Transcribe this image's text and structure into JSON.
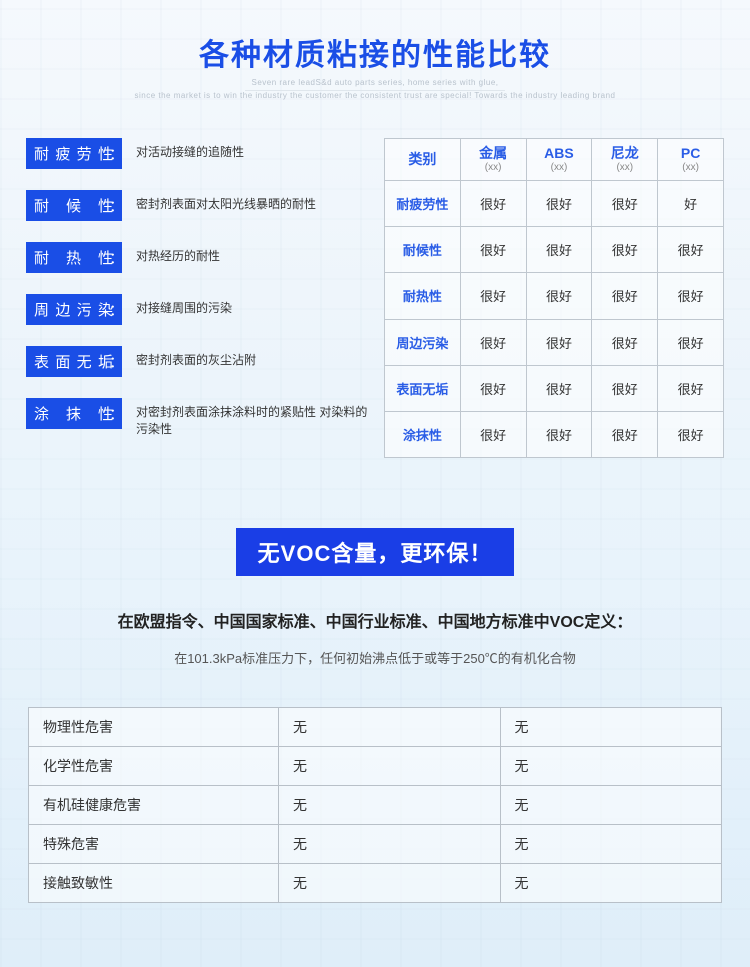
{
  "colors": {
    "title": "#1a4ee6",
    "label_bg": "#1a4ee6",
    "banner_bg": "#1a3ee6",
    "table_border": "#bfc7cf",
    "header_text": "#2a5de6",
    "body_text": "#333333",
    "sub_text": "#888888"
  },
  "title": "各种材质粘接的性能比较",
  "subtitle_lines": [
    "Seven rare leadS&d auto parts series, home series with glue,",
    "since the market is to win the industry the customer the consistent trust are special! Towards the industry leading brand"
  ],
  "definitions": [
    {
      "label": "耐疲劳性",
      "text": "对活动接缝的追随性"
    },
    {
      "label": "耐候性",
      "text": "密封剂表面对太阳光线暴晒的耐性"
    },
    {
      "label": "耐热性",
      "text": "对热经历的耐性"
    },
    {
      "label": "周边污染",
      "text": "对接缝周围的污染"
    },
    {
      "label": "表面无垢",
      "text": "密封剂表面的灰尘沾附"
    },
    {
      "label": "涂抹性",
      "text": "对密封剂表面涂抹涂料时的紧贴性 对染料的污染性"
    }
  ],
  "perf_table": {
    "corner": "类别",
    "columns": [
      {
        "name": "金属",
        "sub": "(xx)"
      },
      {
        "name": "ABS",
        "sub": "(xx)"
      },
      {
        "name": "尼龙",
        "sub": "(xx)"
      },
      {
        "name": "PC",
        "sub": "(xx)"
      }
    ],
    "rows": [
      {
        "name": "耐疲劳性",
        "values": [
          "很好",
          "很好",
          "很好",
          "好"
        ]
      },
      {
        "name": "耐候性",
        "values": [
          "很好",
          "很好",
          "很好",
          "很好"
        ]
      },
      {
        "name": "耐热性",
        "values": [
          "很好",
          "很好",
          "很好",
          "很好"
        ]
      },
      {
        "name": "周边污染",
        "values": [
          "很好",
          "很好",
          "很好",
          "很好"
        ]
      },
      {
        "name": "表面无垢",
        "values": [
          "很好",
          "很好",
          "很好",
          "很好"
        ]
      },
      {
        "name": "涂抹性",
        "values": [
          "很好",
          "很好",
          "很好",
          "很好"
        ]
      }
    ]
  },
  "banner": "无VOC含量，更环保！",
  "voc_def": "在欧盟指令、中国国家标准、中国行业标准、中国地方标准中VOC定义：",
  "voc_sub": "在101.3kPa标准压力下，任何初始沸点低于或等于250℃的有机化合物",
  "hazard_table": {
    "rows": [
      {
        "label": "物理性危害",
        "c1": "无",
        "c2": "无"
      },
      {
        "label": "化学性危害",
        "c1": "无",
        "c2": "无"
      },
      {
        "label": "有机硅健康危害",
        "c1": "无",
        "c2": "无"
      },
      {
        "label": "特殊危害",
        "c1": "无",
        "c2": "无"
      },
      {
        "label": "接触致敏性",
        "c1": "无",
        "c2": "无"
      }
    ]
  }
}
